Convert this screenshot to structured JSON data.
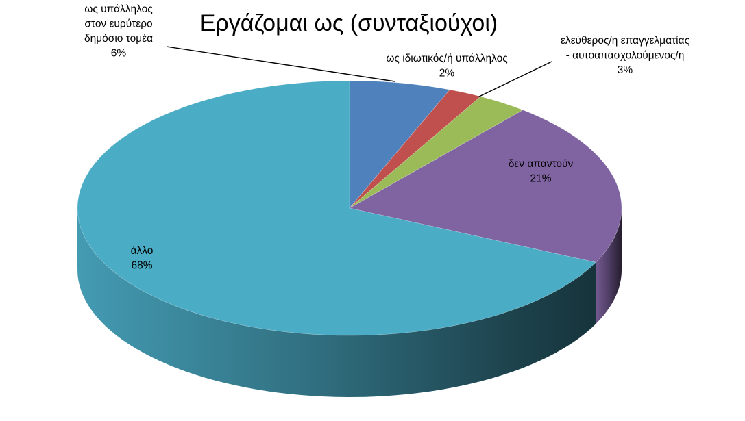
{
  "chart_data": {
    "type": "pie",
    "title": "Εργάζομαι ως (συνταξιούχοι)",
    "style": "3d",
    "legend": "none",
    "slices": [
      {
        "name": "ws-ypallilos",
        "label_lines": [
          "ως υπάλληλος",
          "στον ευρύτερο",
          "δημόσιο τομέα"
        ],
        "value": 6,
        "value_label": "6%",
        "color": "#4F81BD"
      },
      {
        "name": "ws-idiotikos",
        "label_lines": [
          "ως ιδιωτικός/ή υπάλληλος"
        ],
        "value": 2,
        "value_label": "2%",
        "color": "#C0504D"
      },
      {
        "name": "eleftheros",
        "label_lines": [
          "ελεύθερος/η επαγγελματίας",
          "- αυτοαπασχολούμενος/η"
        ],
        "value": 3,
        "value_label": "3%",
        "color": "#9BBB59"
      },
      {
        "name": "den-apantoun",
        "label_lines": [
          "δεν απαντούν"
        ],
        "value": 21,
        "value_label": "21%",
        "color": "#8064A2"
      },
      {
        "name": "allo",
        "label_lines": [
          "άλλο"
        ],
        "value": 68,
        "value_label": "68%",
        "color": "#4BACC6"
      }
    ]
  }
}
